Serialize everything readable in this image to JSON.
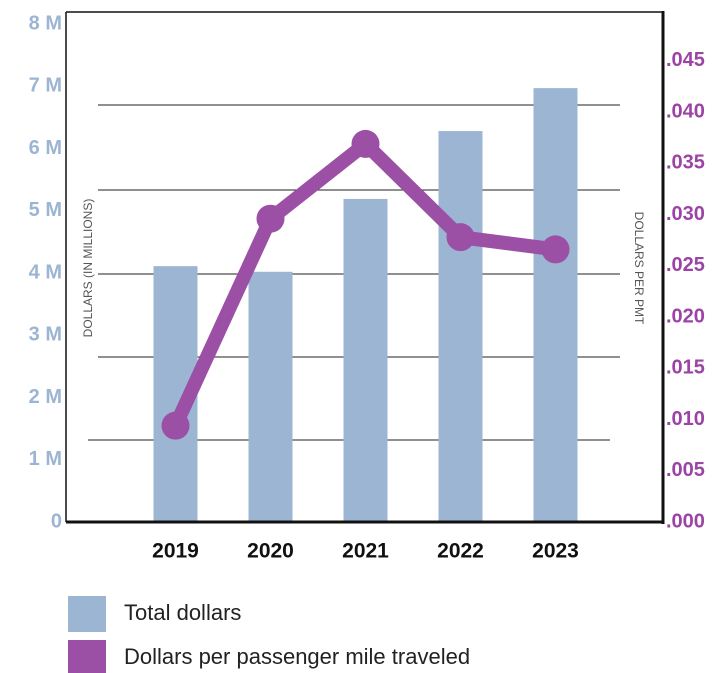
{
  "chart_data": {
    "type": "bar",
    "categories": [
      "2019",
      "2020",
      "2021",
      "2022",
      "2023"
    ],
    "series": [
      {
        "name": "Total dollars",
        "type": "bar",
        "color": "#9bb5d3",
        "values": [
          4.11,
          4.02,
          5.19,
          6.28,
          6.97
        ]
      },
      {
        "name": "Dollars per passenger mile traveled",
        "type": "line",
        "axis": "y2",
        "color": "#9b4fa5",
        "values": [
          0.0094,
          0.0296,
          0.0369,
          0.0278,
          0.0266
        ]
      }
    ],
    "ylabel": "DOLLARS (IN MILLIONS)",
    "y2label": "DOLLARS PER  PMT",
    "ylim": [
      0,
      8
    ],
    "yticks": [
      0,
      {
        "value": 1,
        "label": "1 M"
      },
      {
        "value": 2,
        "label": "2 M"
      },
      {
        "value": 3,
        "label": "3 M"
      },
      {
        "value": 4,
        "label": "4 M"
      },
      {
        "value": 5,
        "label": "5 M"
      },
      {
        "value": 6,
        "label": "6 M"
      },
      {
        "value": 7,
        "label": "7 M"
      },
      {
        "value": 8,
        "label": "8 M"
      }
    ],
    "y2lim": [
      0,
      0.0486
    ],
    "y2ticks": [
      {
        "value": 0,
        "label": ".000"
      },
      {
        "value": 0.005,
        "label": ".005"
      },
      {
        "value": 0.01,
        "label": ".010"
      },
      {
        "value": 0.015,
        "label": ".015"
      },
      {
        "value": 0.02,
        "label": ".020"
      },
      {
        "value": 0.025,
        "label": ".025"
      },
      {
        "value": 0.03,
        "label": ".030"
      },
      {
        "value": 0.035,
        "label": ".035"
      },
      {
        "value": 0.04,
        "label": ".040"
      },
      {
        "value": 0.045,
        "label": ".045"
      }
    ],
    "grid": false
  }
}
